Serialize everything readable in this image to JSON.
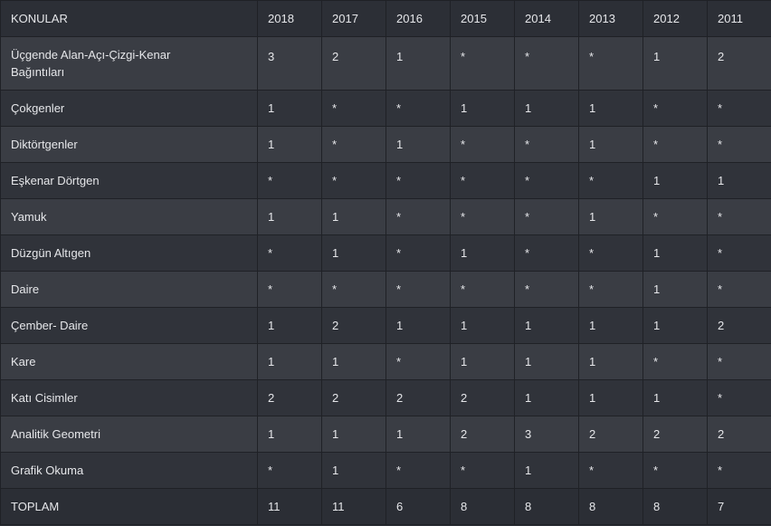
{
  "table": {
    "header": {
      "topic_label": "KONULAR",
      "years": [
        "2018",
        "2017",
        "2016",
        "2015",
        "2014",
        "2013",
        "2012",
        "2011"
      ]
    },
    "rows": [
      {
        "topic": "Üçgende Alan-Açı-Çizgi-Kenar Bağıntıları",
        "values": [
          "3",
          "2",
          "1",
          "*",
          "*",
          "*",
          "1",
          "2"
        ]
      },
      {
        "topic": "Çokgenler",
        "values": [
          "1",
          "*",
          "*",
          "1",
          "1",
          "1",
          "*",
          "*"
        ]
      },
      {
        "topic": "Diktörtgenler",
        "values": [
          "1",
          "*",
          "1",
          "*",
          "*",
          "1",
          "*",
          "*"
        ]
      },
      {
        "topic": "Eşkenar Dörtgen",
        "values": [
          "*",
          "*",
          "*",
          "*",
          "*",
          "*",
          "1",
          "1"
        ]
      },
      {
        "topic": "Yamuk",
        "values": [
          "1",
          "1",
          "*",
          "*",
          "*",
          "1",
          "*",
          "*"
        ]
      },
      {
        "topic": "Düzgün Altıgen",
        "values": [
          "*",
          "1",
          "*",
          "1",
          "*",
          "*",
          "1",
          "*"
        ]
      },
      {
        "topic": "Daire",
        "values": [
          "*",
          "*",
          "*",
          "*",
          "*",
          "*",
          "1",
          "*"
        ]
      },
      {
        "topic": "Çember- Daire",
        "values": [
          "1",
          "2",
          "1",
          "1",
          "1",
          "1",
          "1",
          "2"
        ]
      },
      {
        "topic": "Kare",
        "values": [
          "1",
          "1",
          "*",
          "1",
          "1",
          "1",
          "*",
          "*"
        ]
      },
      {
        "topic": "Katı Cisimler",
        "values": [
          "2",
          "2",
          "2",
          "2",
          "1",
          "1",
          "1",
          "*"
        ]
      },
      {
        "topic": "Analitik Geometri",
        "values": [
          "1",
          "1",
          "1",
          "2",
          "3",
          "2",
          "2",
          "2"
        ]
      },
      {
        "topic": "Grafik Okuma",
        "values": [
          "*",
          "1",
          "*",
          "*",
          "1",
          "*",
          "*",
          "*"
        ]
      },
      {
        "topic": "TOPLAM",
        "values": [
          "11",
          "11",
          "6",
          "8",
          "8",
          "8",
          "8",
          "7"
        ]
      }
    ]
  }
}
